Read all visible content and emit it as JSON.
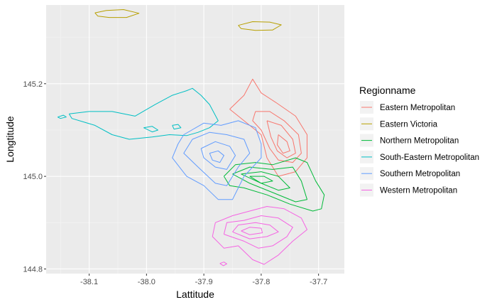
{
  "chart_data": {
    "type": "contour",
    "xlabel": "Lattitude",
    "ylabel": "Longtitude",
    "xlim": [
      -38.175,
      -37.655
    ],
    "ylim": [
      144.79,
      145.37
    ],
    "x_ticks": [
      -38.1,
      -38.0,
      -37.9,
      -37.8,
      -37.7
    ],
    "x_tick_labels": [
      "-38.1",
      "-38.0",
      "-37.9",
      "-37.8",
      "-37.7"
    ],
    "y_ticks": [
      144.8,
      145.0,
      145.2
    ],
    "y_tick_labels": [
      "144.8",
      "145.0",
      "145.2"
    ],
    "grid": true,
    "legend": {
      "title": "Regionname",
      "position": "right",
      "entries": [
        {
          "label": "Eastern Metropolitan",
          "color": "#F8766D"
        },
        {
          "label": "Eastern Victoria",
          "color": "#B79F00"
        },
        {
          "label": "Northern Metropolitan",
          "color": "#00BA38"
        },
        {
          "label": "South-Eastern Metropolitan",
          "color": "#00BFC4"
        },
        {
          "label": "Southern Metropolitan",
          "color": "#619CFF"
        },
        {
          "label": "Western Metropolitan",
          "color": "#F564E3"
        }
      ]
    },
    "series": [
      {
        "name": "Eastern Metropolitan",
        "color": "#F8766D",
        "contours": [
          [
            [
              -37.855,
              145.145
            ],
            [
              -37.83,
              145.175
            ],
            [
              -37.815,
              145.21
            ],
            [
              -37.8,
              145.18
            ],
            [
              -37.775,
              145.16
            ],
            [
              -37.74,
              145.13
            ],
            [
              -37.72,
              145.09
            ],
            [
              -37.72,
              145.04
            ],
            [
              -37.74,
              145.01
            ],
            [
              -37.77,
              145.0
            ],
            [
              -37.79,
              145.04
            ],
            [
              -37.8,
              145.09
            ],
            [
              -37.83,
              145.12
            ],
            [
              -37.855,
              145.145
            ]
          ],
          [
            [
              -37.81,
              145.14
            ],
            [
              -37.785,
              145.14
            ],
            [
              -37.76,
              145.12
            ],
            [
              -37.735,
              145.09
            ],
            [
              -37.73,
              145.05
            ],
            [
              -37.745,
              145.03
            ],
            [
              -37.77,
              145.035
            ],
            [
              -37.785,
              145.06
            ],
            [
              -37.8,
              145.1
            ],
            [
              -37.815,
              145.12
            ],
            [
              -37.81,
              145.14
            ]
          ],
          [
            [
              -37.79,
              145.12
            ],
            [
              -37.765,
              145.11
            ],
            [
              -37.745,
              145.08
            ],
            [
              -37.74,
              145.05
            ],
            [
              -37.755,
              145.04
            ],
            [
              -37.772,
              145.055
            ],
            [
              -37.783,
              145.085
            ],
            [
              -37.79,
              145.12
            ]
          ],
          [
            [
              -37.77,
              145.09
            ],
            [
              -37.755,
              145.075
            ],
            [
              -37.75,
              145.055
            ],
            [
              -37.762,
              145.05
            ],
            [
              -37.772,
              145.068
            ],
            [
              -37.77,
              145.09
            ]
          ]
        ]
      },
      {
        "name": "Eastern Victoria",
        "color": "#B79F00",
        "contours": [
          [
            [
              -38.09,
              145.353
            ],
            [
              -38.07,
              145.358
            ],
            [
              -38.04,
              145.36
            ],
            [
              -38.013,
              145.352
            ],
            [
              -38.035,
              145.343
            ],
            [
              -38.065,
              145.343
            ],
            [
              -38.085,
              145.346
            ],
            [
              -38.09,
              145.353
            ]
          ],
          [
            [
              -37.84,
              145.326
            ],
            [
              -37.815,
              145.334
            ],
            [
              -37.785,
              145.333
            ],
            [
              -37.765,
              145.327
            ],
            [
              -37.78,
              145.316
            ],
            [
              -37.81,
              145.315
            ],
            [
              -37.835,
              145.319
            ],
            [
              -37.84,
              145.326
            ]
          ]
        ]
      },
      {
        "name": "Northern Metropolitan",
        "color": "#00BA38",
        "contours": [
          [
            [
              -37.865,
              145.0
            ],
            [
              -37.845,
              145.025
            ],
            [
              -37.81,
              145.03
            ],
            [
              -37.78,
              145.025
            ],
            [
              -37.74,
              145.04
            ],
            [
              -37.72,
              145.03
            ],
            [
              -37.705,
              144.99
            ],
            [
              -37.69,
              144.96
            ],
            [
              -37.695,
              144.93
            ],
            [
              -37.71,
              144.925
            ],
            [
              -37.75,
              144.94
            ],
            [
              -37.79,
              144.96
            ],
            [
              -37.83,
              144.975
            ],
            [
              -37.855,
              144.98
            ],
            [
              -37.865,
              145.0
            ]
          ],
          [
            [
              -37.85,
              145.005
            ],
            [
              -37.82,
              145.02
            ],
            [
              -37.78,
              145.015
            ],
            [
              -37.745,
              145.02
            ],
            [
              -37.73,
              144.99
            ],
            [
              -37.72,
              144.95
            ],
            [
              -37.74,
              144.945
            ],
            [
              -37.78,
              144.965
            ],
            [
              -37.82,
              144.985
            ],
            [
              -37.85,
              145.005
            ]
          ],
          [
            [
              -37.835,
              145.005
            ],
            [
              -37.8,
              145.01
            ],
            [
              -37.77,
              145.0
            ],
            [
              -37.75,
              144.975
            ],
            [
              -37.77,
              144.97
            ],
            [
              -37.8,
              144.985
            ],
            [
              -37.835,
              145.005
            ]
          ],
          [
            [
              -37.82,
              145.0
            ],
            [
              -37.795,
              145.0
            ],
            [
              -37.78,
              144.99
            ],
            [
              -37.8,
              144.985
            ],
            [
              -37.82,
              145.0
            ]
          ]
        ]
      },
      {
        "name": "South-Eastern Metropolitan",
        "color": "#00BFC4",
        "contours": [
          [
            [
              -38.135,
              145.135
            ],
            [
              -38.1,
              145.14
            ],
            [
              -38.06,
              145.14
            ],
            [
              -38.02,
              145.13
            ],
            [
              -37.985,
              145.155
            ],
            [
              -37.955,
              145.175
            ],
            [
              -37.93,
              145.185
            ],
            [
              -37.92,
              145.19
            ],
            [
              -37.905,
              145.175
            ],
            [
              -37.89,
              145.155
            ],
            [
              -37.875,
              145.12
            ],
            [
              -37.89,
              145.105
            ],
            [
              -37.91,
              145.095
            ],
            [
              -37.93,
              145.088
            ],
            [
              -37.96,
              145.09
            ],
            [
              -37.99,
              145.085
            ],
            [
              -38.03,
              145.08
            ],
            [
              -38.06,
              145.09
            ],
            [
              -38.09,
              145.11
            ],
            [
              -38.13,
              145.125
            ],
            [
              -38.135,
              145.135
            ]
          ],
          [
            [
              -38.155,
              145.128
            ],
            [
              -38.145,
              145.132
            ],
            [
              -38.14,
              145.128
            ],
            [
              -38.15,
              145.125
            ],
            [
              -38.155,
              145.128
            ]
          ],
          [
            [
              -38.005,
              145.105
            ],
            [
              -37.99,
              145.108
            ],
            [
              -37.98,
              145.1
            ],
            [
              -37.99,
              145.096
            ],
            [
              -38.005,
              145.105
            ]
          ],
          [
            [
              -37.955,
              145.11
            ],
            [
              -37.945,
              145.112
            ],
            [
              -37.94,
              145.105
            ],
            [
              -37.952,
              145.102
            ],
            [
              -37.955,
              145.11
            ]
          ]
        ]
      },
      {
        "name": "Southern Metropolitan",
        "color": "#619CFF",
        "contours": [
          [
            [
              -37.935,
              145.09
            ],
            [
              -37.9,
              145.115
            ],
            [
              -37.87,
              145.11
            ],
            [
              -37.84,
              145.12
            ],
            [
              -37.81,
              145.105
            ],
            [
              -37.8,
              145.07
            ],
            [
              -37.8,
              145.04
            ],
            [
              -37.83,
              145.0
            ],
            [
              -37.85,
              144.95
            ],
            [
              -37.875,
              144.95
            ],
            [
              -37.9,
              144.98
            ],
            [
              -37.93,
              145.0
            ],
            [
              -37.955,
              145.04
            ],
            [
              -37.945,
              145.07
            ],
            [
              -37.935,
              145.09
            ]
          ],
          [
            [
              -37.92,
              145.08
            ],
            [
              -37.89,
              145.095
            ],
            [
              -37.86,
              145.09
            ],
            [
              -37.83,
              145.08
            ],
            [
              -37.82,
              145.05
            ],
            [
              -37.84,
              145.02
            ],
            [
              -37.86,
              144.98
            ],
            [
              -37.88,
              144.985
            ],
            [
              -37.91,
              145.02
            ],
            [
              -37.935,
              145.05
            ],
            [
              -37.92,
              145.08
            ]
          ],
          [
            [
              -37.905,
              145.06
            ],
            [
              -37.88,
              145.075
            ],
            [
              -37.855,
              145.065
            ],
            [
              -37.845,
              145.045
            ],
            [
              -37.86,
              145.015
            ],
            [
              -37.88,
              145.02
            ],
            [
              -37.9,
              145.04
            ],
            [
              -37.905,
              145.06
            ]
          ],
          [
            [
              -37.89,
              145.05
            ],
            [
              -37.875,
              145.055
            ],
            [
              -37.865,
              145.045
            ],
            [
              -37.872,
              145.03
            ],
            [
              -37.885,
              145.035
            ],
            [
              -37.89,
              145.05
            ]
          ]
        ]
      },
      {
        "name": "Western Metropolitan",
        "color": "#F564E3",
        "contours": [
          [
            [
              -37.885,
              144.87
            ],
            [
              -37.88,
              144.9
            ],
            [
              -37.85,
              144.915
            ],
            [
              -37.82,
              144.925
            ],
            [
              -37.79,
              144.935
            ],
            [
              -37.76,
              144.93
            ],
            [
              -37.73,
              144.91
            ],
            [
              -37.72,
              144.885
            ],
            [
              -37.745,
              144.86
            ],
            [
              -37.77,
              144.83
            ],
            [
              -37.795,
              144.81
            ],
            [
              -37.815,
              144.82
            ],
            [
              -37.84,
              144.85
            ],
            [
              -37.865,
              144.845
            ],
            [
              -37.885,
              144.87
            ]
          ],
          [
            [
              -37.865,
              144.875
            ],
            [
              -37.86,
              144.9
            ],
            [
              -37.83,
              144.905
            ],
            [
              -37.8,
              144.915
            ],
            [
              -37.77,
              144.91
            ],
            [
              -37.745,
              144.89
            ],
            [
              -37.755,
              144.87
            ],
            [
              -37.78,
              144.85
            ],
            [
              -37.805,
              144.845
            ],
            [
              -37.83,
              144.86
            ],
            [
              -37.865,
              144.875
            ]
          ],
          [
            [
              -37.85,
              144.88
            ],
            [
              -37.84,
              144.895
            ],
            [
              -37.81,
              144.9
            ],
            [
              -37.785,
              144.895
            ],
            [
              -37.77,
              144.88
            ],
            [
              -37.79,
              144.87
            ],
            [
              -37.82,
              144.865
            ],
            [
              -37.85,
              144.88
            ]
          ],
          [
            [
              -37.835,
              144.882
            ],
            [
              -37.82,
              144.89
            ],
            [
              -37.8,
              144.888
            ],
            [
              -37.798,
              144.878
            ],
            [
              -37.82,
              144.874
            ],
            [
              -37.835,
              144.882
            ]
          ],
          [
            [
              -37.872,
              144.812
            ],
            [
              -37.865,
              144.815
            ],
            [
              -37.86,
              144.811
            ],
            [
              -37.866,
              144.807
            ],
            [
              -37.872,
              144.812
            ]
          ]
        ]
      }
    ]
  }
}
